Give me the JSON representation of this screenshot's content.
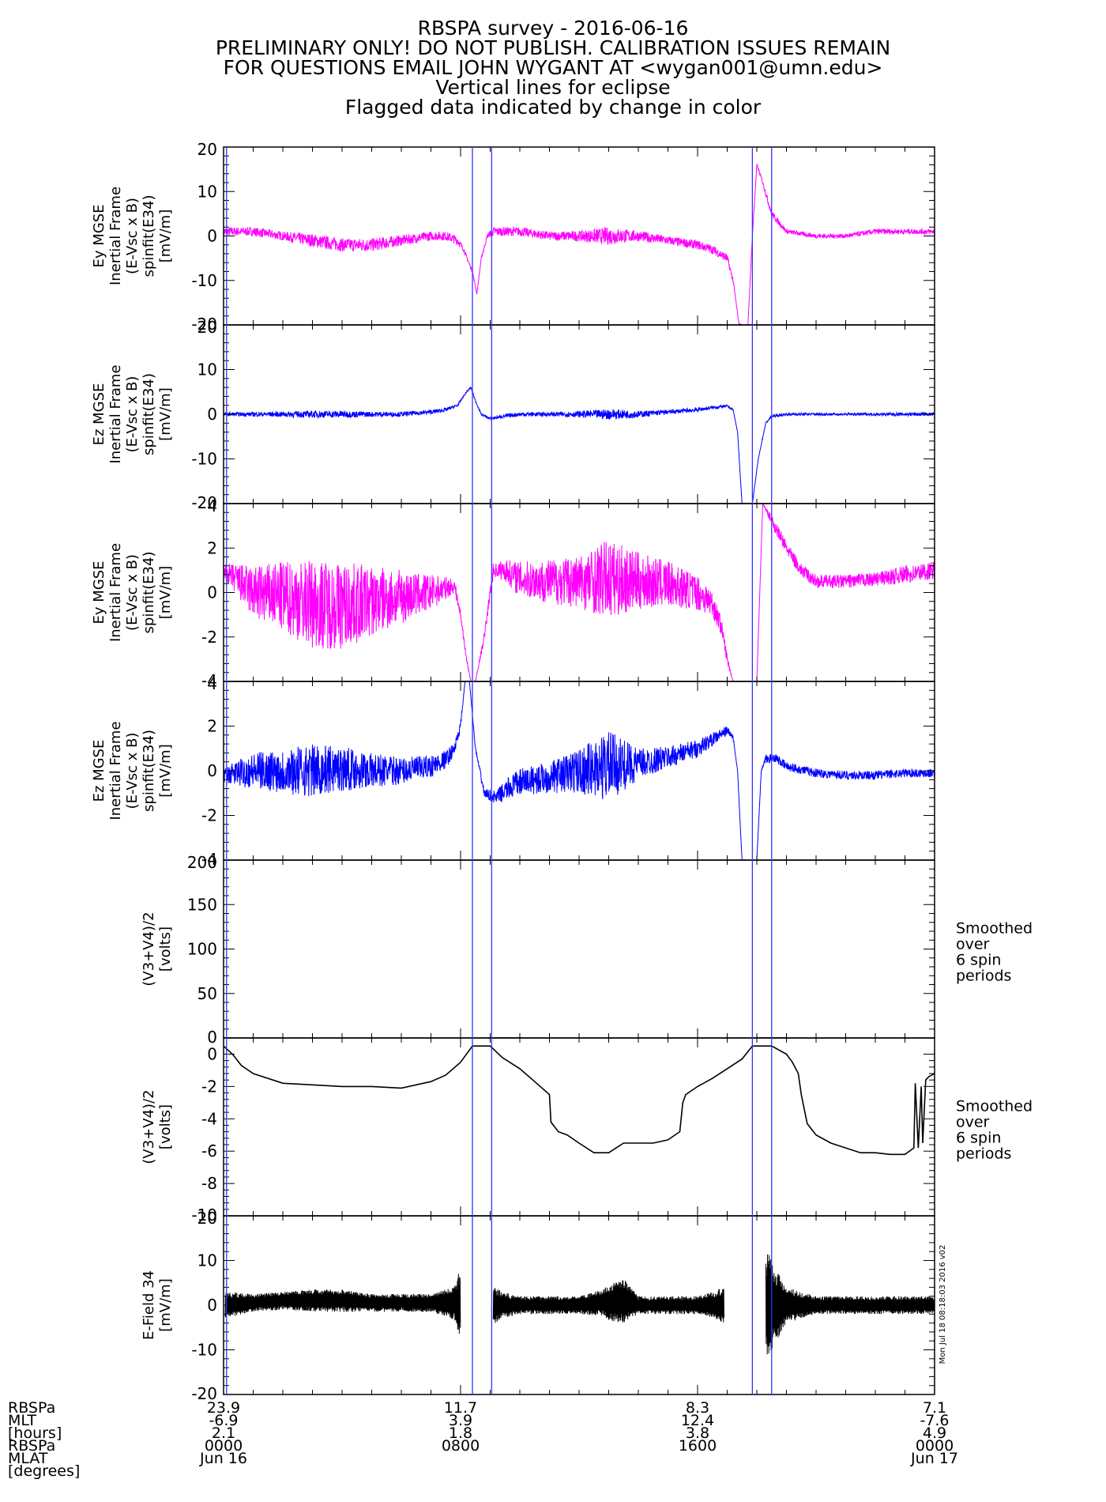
{
  "titles": [
    "RBSPA survey - 2016-06-16",
    "PRELIMINARY ONLY! DO NOT PUBLISH. CALIBRATION ISSUES REMAIN",
    "FOR QUESTIONS EMAIL JOHN WYGANT AT <wygan001@umn.edu>",
    "Vertical lines for eclipse",
    "Flagged data indicated by change in color"
  ],
  "side_note": "Mon Jul 18 08:18:03 2016 v02",
  "colors": {
    "magenta": "#ff00ff",
    "blue": "#0000ff",
    "black": "#000000",
    "eclipse": "#3333ff"
  },
  "chart_data": {
    "type": "line",
    "x_unit": "hours since 2016-06-16 00:00 UT",
    "xlim": [
      0,
      24
    ],
    "eclipse_times_hours": [
      0.1,
      8.4,
      9.05,
      17.85,
      18.5
    ],
    "x_ticks": [
      {
        "x": 0,
        "labels": [
          "23.9",
          "-6.9",
          "2.1",
          "0000",
          "Jun 16"
        ]
      },
      {
        "x": 8,
        "labels": [
          "11.7",
          "3.9",
          "1.8",
          "0800",
          ""
        ]
      },
      {
        "x": 16,
        "labels": [
          "8.3",
          "12.4",
          "3.8",
          "1600",
          ""
        ]
      },
      {
        "x": 24,
        "labels": [
          "7.1",
          "-7.6",
          "4.9",
          "0000",
          "Jun 17"
        ]
      }
    ],
    "row_labels": [
      "RBSPa",
      "MLT",
      "[hours]",
      "RBSPa",
      "MLAT",
      "[degrees]"
    ],
    "panels": [
      {
        "ylabel": [
          "Ey MGSE",
          "Inertial Frame",
          "(E-Vsc x B)",
          "spinfit(E34)",
          "[mV/m]"
        ],
        "ylim": [
          -20,
          20
        ],
        "yticks": [
          -20,
          -10,
          0,
          10,
          20
        ],
        "color": "magenta",
        "note": [],
        "x": [
          0,
          1,
          2,
          3,
          4,
          5,
          6,
          7,
          7.5,
          7.9,
          8.1,
          8.4,
          8.55,
          8.7,
          8.9,
          9.1,
          10,
          11,
          12,
          13,
          14,
          15,
          16,
          16.5,
          17,
          17.2,
          17.4,
          17.55,
          17.7,
          17.85,
          18.0,
          18.2,
          18.5,
          19,
          20,
          21,
          22,
          23,
          24
        ],
        "y": [
          1,
          1,
          0,
          -1,
          -2,
          -2,
          -1,
          0,
          0,
          -1,
          -3,
          -8,
          -13,
          -5,
          0,
          1,
          1,
          0,
          0,
          0,
          0,
          -1,
          -2,
          -3,
          -5,
          -10,
          -20,
          -20,
          -20,
          0,
          16,
          12,
          5,
          1,
          0,
          0,
          1,
          1,
          1
        ],
        "noise": [
          1,
          1,
          1,
          1.5,
          1.5,
          1.5,
          1.2,
          1,
          1,
          1,
          0.5,
          0.3,
          0.3,
          0.3,
          0.5,
          1,
          1,
          1,
          1.2,
          2,
          1.2,
          1,
          1,
          1,
          1,
          0.5,
          0.3,
          0,
          0,
          0.3,
          0.3,
          0.5,
          0.8,
          0.5,
          0.5,
          0.5,
          0.6,
          0.6,
          0.6
        ]
      },
      {
        "ylabel": [
          "Ez MGSE",
          "Inertial Frame",
          "(E-Vsc x B)",
          "spinfit(E34)",
          "[mV/m]"
        ],
        "ylim": [
          -20,
          20
        ],
        "yticks": [
          -20,
          -10,
          0,
          10,
          20
        ],
        "color": "blue",
        "note": [],
        "x": [
          0,
          1,
          2,
          3,
          4,
          5,
          6,
          7,
          7.5,
          7.9,
          8.2,
          8.35,
          8.5,
          8.7,
          9.0,
          9.4,
          10,
          11,
          12,
          13,
          14,
          15,
          16,
          16.5,
          17,
          17.2,
          17.35,
          17.5,
          17.65,
          17.85,
          18.05,
          18.3,
          18.5,
          19,
          20,
          21,
          22,
          23,
          24
        ],
        "y": [
          0,
          0,
          0,
          0,
          0,
          0,
          0,
          0.5,
          1,
          2,
          5,
          6,
          3,
          0,
          -1,
          -0.5,
          0,
          0,
          0,
          0,
          0,
          0.5,
          1,
          1.5,
          1.8,
          1,
          -4,
          -20,
          -20,
          -20,
          -10,
          -2,
          -0.5,
          0,
          0,
          0,
          0,
          0,
          0
        ],
        "noise": [
          0.4,
          0.5,
          0.6,
          0.8,
          0.8,
          0.6,
          0.5,
          0.5,
          0.4,
          0.3,
          0.2,
          0.2,
          0.2,
          0.2,
          0.3,
          0.4,
          0.5,
          0.5,
          0.7,
          1.2,
          0.8,
          0.5,
          0.5,
          0.4,
          0.3,
          0.2,
          0,
          0,
          0,
          0,
          0.2,
          0.2,
          0.3,
          0.3,
          0.3,
          0.3,
          0.3,
          0.4,
          0.4
        ]
      },
      {
        "ylabel": [
          "Ey MGSE",
          "Inertial Frame",
          "(E-Vsc x B)",
          "spinfit(E34)",
          "[mV/m]"
        ],
        "ylim": [
          -4,
          4
        ],
        "yticks": [
          -4,
          -2,
          0,
          2,
          4
        ],
        "color": "magenta",
        "note": [],
        "x": [
          0,
          0.5,
          1,
          2,
          3,
          4,
          5,
          6,
          7,
          7.5,
          7.8,
          8.0,
          8.2,
          8.35,
          8.5,
          8.8,
          9.1,
          9.5,
          10,
          11,
          12,
          13,
          14,
          15,
          16,
          16.5,
          16.8,
          17.0,
          17.2,
          17.5,
          17.7,
          17.85,
          18.0,
          18.2,
          18.6,
          19.0,
          19.5,
          20,
          21,
          22,
          23,
          24
        ],
        "y": [
          1,
          0.5,
          0,
          -0.2,
          -0.5,
          -0.6,
          -0.4,
          -0.2,
          0,
          0.2,
          0.3,
          -1,
          -3,
          -4,
          -4,
          -2,
          1,
          1,
          0.6,
          0.5,
          0.5,
          0.6,
          0.5,
          0.4,
          0,
          -0.5,
          -1.5,
          -3,
          -4,
          -4,
          -4,
          -4,
          -4,
          4,
          3,
          2,
          1,
          0.5,
          0.5,
          0.6,
          0.8,
          1
        ],
        "noise": [
          0.3,
          0.8,
          1.2,
          1.6,
          2.0,
          2.0,
          1.6,
          1.2,
          0.8,
          0.5,
          0.3,
          0.2,
          0.1,
          0,
          0,
          0.2,
          0.3,
          0.5,
          0.8,
          1.0,
          1.2,
          1.8,
          1.3,
          1.0,
          0.8,
          0.6,
          0.4,
          0.2,
          0,
          0,
          0,
          0,
          0,
          0,
          0.3,
          0.3,
          0.3,
          0.3,
          0.3,
          0.3,
          0.4,
          0.4
        ]
      },
      {
        "ylabel": [
          "Ez MGSE",
          "Inertial Frame",
          "(E-Vsc x B)",
          "spinfit(E34)",
          "[mV/m]"
        ],
        "ylim": [
          -4,
          4
        ],
        "yticks": [
          -4,
          -2,
          0,
          2,
          4
        ],
        "color": "blue",
        "note": [],
        "x": [
          0,
          0.5,
          1,
          2,
          3,
          4,
          5,
          6,
          7,
          7.5,
          7.8,
          8.0,
          8.15,
          8.3,
          8.5,
          8.8,
          9.2,
          9.6,
          10,
          11,
          12,
          13,
          14,
          15,
          16,
          16.5,
          17,
          17.2,
          17.35,
          17.5,
          17.65,
          17.85,
          18.0,
          18.15,
          18.3,
          18.6,
          19,
          20,
          21,
          22,
          23,
          24
        ],
        "y": [
          -0.2,
          -0.1,
          0,
          0,
          0,
          0.1,
          0,
          0,
          0.2,
          0.5,
          1,
          2,
          4,
          4,
          1,
          -1,
          -1.2,
          -0.8,
          -0.5,
          -0.3,
          0,
          0.2,
          0.3,
          0.6,
          1,
          1.4,
          1.8,
          1.5,
          0,
          -4,
          -4,
          -4,
          -4,
          0,
          0.5,
          0.6,
          0.2,
          -0.1,
          -0.2,
          -0.2,
          -0.1,
          -0.1
        ],
        "noise": [
          0.3,
          0.6,
          0.8,
          1.0,
          1.2,
          1.0,
          0.8,
          0.6,
          0.5,
          0.4,
          0.3,
          0.2,
          0,
          0,
          0.1,
          0.2,
          0.3,
          0.5,
          0.6,
          0.7,
          1.0,
          1.6,
          0.7,
          0.5,
          0.4,
          0.3,
          0.2,
          0.1,
          0,
          0,
          0,
          0,
          0,
          0,
          0.2,
          0.2,
          0.2,
          0.2,
          0.2,
          0.2,
          0.2,
          0.2
        ]
      },
      {
        "ylabel": [
          "(V3+V4)/2",
          "[volts]"
        ],
        "ylim": [
          0,
          200
        ],
        "yticks": [
          0,
          50,
          100,
          150,
          200
        ],
        "color": "black",
        "note": [
          "Smoothed",
          "over",
          "6 spin",
          "periods"
        ],
        "x": [
          0,
          2,
          4,
          6,
          8,
          9,
          10,
          11,
          12,
          13,
          14,
          15,
          16,
          17,
          18,
          19,
          20,
          21,
          22,
          23,
          24
        ],
        "y": [
          0,
          -1,
          -2,
          -2,
          -1,
          0,
          0,
          -2,
          -6,
          -6,
          -6,
          -5,
          -3,
          -1,
          0,
          0,
          -3,
          -6,
          -6,
          -6,
          -1
        ],
        "noise": []
      },
      {
        "ylabel": [
          "(V3+V4)/2",
          "[volts]"
        ],
        "ylim": [
          -10,
          1
        ],
        "yticks": [
          -10,
          -8,
          -6,
          -4,
          -2,
          0
        ],
        "color": "black",
        "note": [
          "Smoothed",
          "over",
          "6 spin",
          "periods"
        ],
        "x": [
          0,
          0.3,
          0.6,
          1,
          2,
          3,
          4,
          5,
          6,
          7,
          7.5,
          8,
          8.4,
          9.0,
          9.4,
          10,
          10.5,
          11,
          11.05,
          11.3,
          11.6,
          12,
          12.5,
          13,
          13.5,
          14,
          14.5,
          15,
          15.4,
          15.5,
          15.6,
          16,
          16.5,
          17,
          17.5,
          17.85,
          18.5,
          19.0,
          19.2,
          19.4,
          19.5,
          19.7,
          20,
          20.5,
          21,
          21.5,
          22,
          22.5,
          23,
          23.3,
          23.35,
          23.45,
          23.55,
          23.6,
          23.7,
          23.8,
          24
        ],
        "y": [
          0.5,
          0,
          -0.7,
          -1.2,
          -1.8,
          -1.9,
          -2.0,
          -2.0,
          -2.1,
          -1.7,
          -1.3,
          -0.5,
          0.5,
          0.5,
          -0.2,
          -0.9,
          -1.7,
          -2.5,
          -4.2,
          -4.8,
          -5.0,
          -5.5,
          -6.1,
          -6.1,
          -5.5,
          -5.5,
          -5.5,
          -5.3,
          -4.8,
          -3.0,
          -2.5,
          -2.0,
          -1.5,
          -0.9,
          -0.3,
          0.5,
          0.5,
          0,
          -0.5,
          -1.2,
          -2.5,
          -4.3,
          -5.0,
          -5.5,
          -5.8,
          -6.1,
          -6.1,
          -6.2,
          -6.2,
          -5.8,
          -1.8,
          -5.8,
          -2.0,
          -5.5,
          -1.6,
          -1.4,
          -1.2
        ],
        "noise": []
      },
      {
        "ylabel": [
          "E-Field 34",
          "[mV/m]"
        ],
        "ylim": [
          -20,
          20
        ],
        "yticks": [
          -20,
          -10,
          0,
          10,
          20
        ],
        "color": "black",
        "note": [],
        "x": [
          0.05,
          1,
          2,
          3,
          4,
          5,
          6,
          7,
          7.5,
          7.8,
          7.95,
          9.2,
          9.4,
          10,
          11,
          12,
          12.8,
          13,
          13.5,
          14,
          15,
          16,
          16.5,
          16.85,
          18.4,
          18.5,
          19,
          20,
          21,
          22,
          23,
          24
        ],
        "y": [
          0,
          0.5,
          1,
          1,
          1,
          0.5,
          0.5,
          0.5,
          0.5,
          0.5,
          0.5,
          0,
          0,
          0,
          0,
          0,
          0.5,
          0.5,
          1,
          0,
          0,
          0,
          0,
          0,
          0,
          0,
          0,
          0,
          0,
          0,
          0,
          0
        ],
        "amp": [
          3,
          2,
          2,
          2.5,
          2.5,
          2,
          2,
          2,
          3,
          4,
          7,
          4,
          3,
          2,
          2,
          2,
          3,
          4,
          5,
          2,
          2,
          2,
          3,
          4,
          12,
          10,
          4,
          2,
          2,
          2,
          2,
          2
        ],
        "gaps": [
          [
            8.0,
            9.1
          ],
          [
            16.9,
            18.3
          ]
        ],
        "noise": []
      }
    ]
  }
}
